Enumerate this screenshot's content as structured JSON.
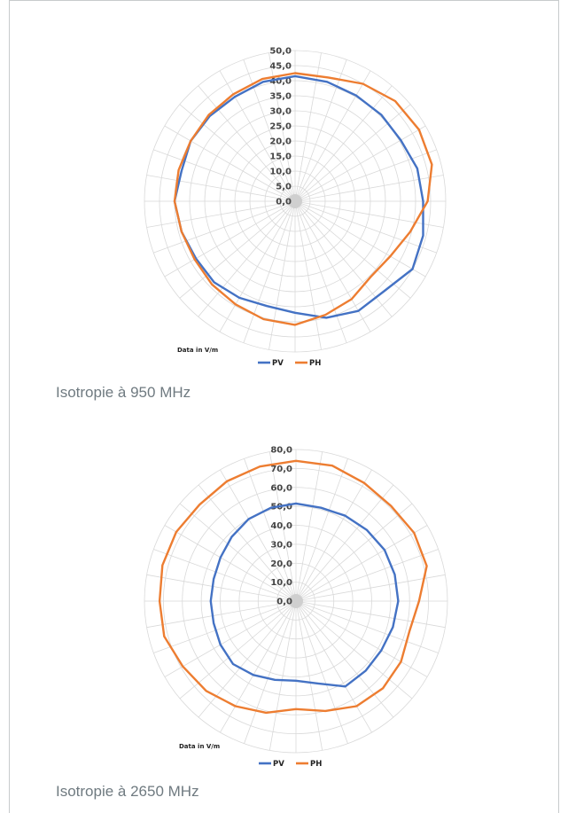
{
  "chart_data": [
    {
      "type": "radar",
      "caption": "Isotropie à 950 MHz",
      "note": "Data in V/m",
      "rlim": [
        0,
        50
      ],
      "ticks": [
        "0,0",
        "5,0",
        "10,0",
        "15,0",
        "20,0",
        "25,0",
        "30,0",
        "35,0",
        "40,0",
        "45,0",
        "50,0"
      ],
      "angles_deg": [
        0,
        15,
        30,
        45,
        60,
        75,
        90,
        105,
        120,
        135,
        150,
        165,
        180,
        195,
        210,
        225,
        240,
        255,
        270,
        285,
        300,
        315,
        330,
        345
      ],
      "grid": true,
      "legend_position": "bottom",
      "series": [
        {
          "name": "PV",
          "color": "#4472c4",
          "values": [
            41.5,
            41,
            40.5,
            40.5,
            40.5,
            42,
            42.5,
            44,
            45,
            42,
            42,
            40,
            37,
            36,
            37,
            38,
            38,
            39,
            40,
            39,
            40,
            40,
            40,
            41
          ]
        },
        {
          "name": "PH",
          "color": "#ed7d31",
          "values": [
            42.5,
            42.5,
            45,
            47,
            47.5,
            47,
            44,
            39.5,
            36.5,
            35.5,
            37.5,
            39,
            41,
            40.5,
            39.5,
            39,
            38.5,
            39,
            40,
            40,
            40,
            40.5,
            41,
            42
          ]
        }
      ]
    },
    {
      "type": "radar",
      "caption": "Isotropie à 2650 MHz",
      "note": "Data in V/m",
      "rlim": [
        0,
        80
      ],
      "ticks": [
        "0,0",
        "10,0",
        "20,0",
        "30,0",
        "40,0",
        "50,0",
        "60,0",
        "70,0",
        "80,0"
      ],
      "angles_deg": [
        0,
        15,
        30,
        45,
        60,
        75,
        90,
        105,
        120,
        135,
        150,
        165,
        180,
        195,
        210,
        225,
        240,
        255,
        270,
        285,
        300,
        315,
        330,
        345
      ],
      "grid": true,
      "legend_position": "bottom",
      "series": [
        {
          "name": "PV",
          "color": "#4472c4",
          "values": [
            51.5,
            51,
            52,
            53,
            54,
            54,
            54,
            53,
            52,
            52,
            52,
            45,
            42,
            43,
            45,
            47,
            46,
            45,
            45,
            45,
            46,
            48,
            50,
            51
          ]
        },
        {
          "name": "PH",
          "color": "#ed7d31",
          "values": [
            74,
            74,
            72,
            71,
            72,
            71.5,
            65,
            62,
            64,
            65,
            64,
            60,
            57,
            61,
            64,
            67,
            69,
            72,
            72,
            73,
            73,
            72,
            73,
            73.5
          ]
        }
      ]
    }
  ]
}
